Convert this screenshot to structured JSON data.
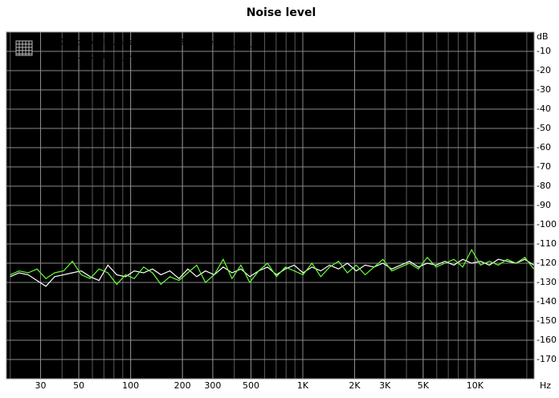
{
  "chart_data": {
    "type": "line",
    "title": "Noise level",
    "x_label": "Hz",
    "y_label": "dB",
    "x": [
      20,
      22.5,
      25.4,
      28.6,
      32.2,
      36.2,
      40.8,
      45.9,
      51.7,
      58.2,
      65.5,
      73.8,
      83.1,
      93.5,
      105,
      119,
      134,
      150,
      169,
      191,
      215,
      242,
      272,
      306,
      345,
      388,
      437,
      492,
      554,
      624,
      703,
      791,
      891,
      1003,
      1130,
      1272,
      1432,
      1613,
      1816,
      2045,
      2302,
      2592,
      2919,
      3287,
      3701,
      4167,
      4692,
      5283,
      5949,
      6699,
      7543,
      8493,
      9563,
      10768,
      12125,
      13653,
      15373,
      17310,
      19491,
      21947
    ],
    "series": [
      {
        "name": "RTX Loopback Unbalanced to Balanced 16_44_1",
        "color": "#ffffff",
        "values": [
          -127,
          -125,
          -126,
          -129,
          -132,
          -127,
          -126,
          -125,
          -124,
          -127,
          -129,
          -121,
          -126,
          -127,
          -124,
          -125,
          -123,
          -126,
          -124,
          -128,
          -123,
          -127,
          -124,
          -126,
          -122,
          -125,
          -123,
          -127,
          -124,
          -122,
          -126,
          -123,
          -121,
          -125,
          -122,
          -124,
          -121,
          -123,
          -120,
          -124,
          -121,
          -122,
          -120,
          -123,
          -121,
          -119,
          -122,
          -120,
          -121,
          -119,
          -121,
          -118,
          -120,
          -119,
          -121,
          -118,
          -119,
          -120,
          -118,
          -121
        ]
      },
      {
        "name": "IDA8 Sub Out 16_44_1 -4_5 dB in",
        "color": "#66ff33",
        "values": [
          -126,
          -124,
          -125,
          -123,
          -128,
          -125,
          -124,
          -119,
          -126,
          -128,
          -123,
          -125,
          -131,
          -126,
          -128,
          -122,
          -125,
          -131,
          -127,
          -129,
          -125,
          -121,
          -130,
          -126,
          -118,
          -128,
          -121,
          -130,
          -124,
          -120,
          -127,
          -122,
          -124,
          -126,
          -120,
          -127,
          -122,
          -119,
          -125,
          -121,
          -126,
          -122,
          -118,
          -124,
          -122,
          -120,
          -123,
          -117,
          -122,
          -120,
          -118,
          -122,
          -113,
          -121,
          -119,
          -121,
          -118,
          -120,
          -117,
          -123
        ]
      }
    ],
    "xscale": "log",
    "xlim": [
      19,
      22050
    ],
    "xticks": [
      30,
      50,
      100,
      200,
      300,
      500,
      {
        "value": 1000,
        "label": "1K"
      },
      {
        "value": 2000,
        "label": "2K"
      },
      {
        "value": 3000,
        "label": "3K"
      },
      {
        "value": 5000,
        "label": "5K"
      },
      {
        "value": 10000,
        "label": "10K"
      }
    ],
    "ylim": [
      -180,
      0
    ],
    "yticks": [
      -10,
      -20,
      -30,
      -40,
      -50,
      -60,
      -70,
      -80,
      -90,
      -100,
      -110,
      -120,
      -130,
      -140,
      -150,
      -160,
      -170
    ],
    "grid": true,
    "legend": "top-left"
  }
}
